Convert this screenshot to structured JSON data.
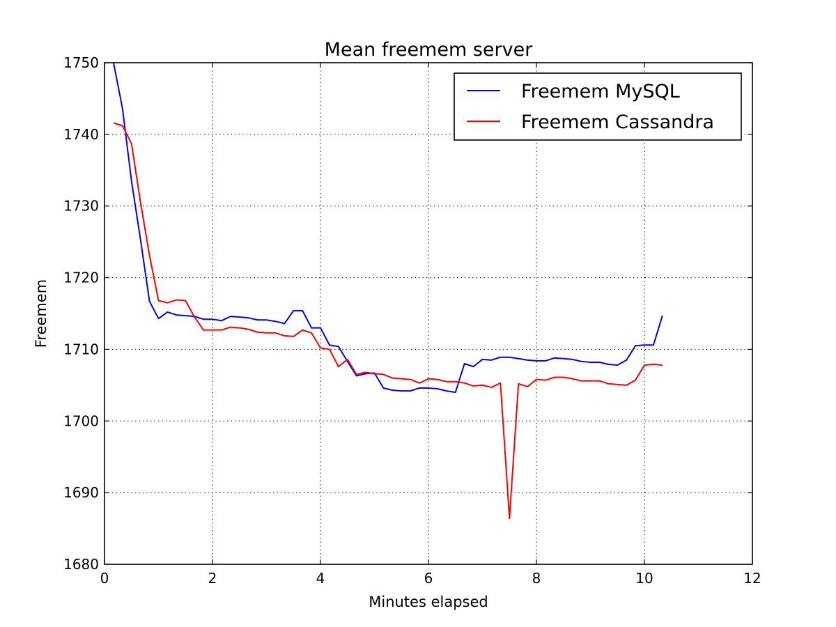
{
  "chart_data": {
    "type": "line",
    "title": "Mean freemem server",
    "xlabel": "Minutes elapsed",
    "ylabel": "Freemem",
    "xlim": [
      0,
      12
    ],
    "ylim": [
      1680,
      1750
    ],
    "xticks": [
      "0",
      "2",
      "4",
      "6",
      "8",
      "10",
      "12"
    ],
    "yticks": [
      "1680",
      "1690",
      "1700",
      "1710",
      "1720",
      "1730",
      "1740",
      "1750"
    ],
    "grid": true,
    "legend_position": "top-right",
    "series": [
      {
        "name": "Freemem MySQL",
        "color": "#0000ff",
        "x": [
          0.167,
          0.333,
          0.5,
          0.667,
          0.833,
          1.0,
          1.167,
          1.333,
          1.5,
          1.667,
          1.833,
          2.0,
          2.167,
          2.333,
          2.5,
          2.667,
          2.833,
          3.0,
          3.167,
          3.333,
          3.5,
          3.667,
          3.833,
          4.0,
          4.167,
          4.333,
          4.5,
          4.667,
          4.833,
          5.0,
          5.167,
          5.333,
          5.5,
          5.667,
          5.833,
          6.0,
          6.167,
          6.333,
          6.5,
          6.667,
          6.833,
          7.0,
          7.167,
          7.333,
          7.5,
          7.667,
          7.833,
          8.0,
          8.167,
          8.333,
          8.5,
          8.667,
          8.833,
          9.0,
          9.167,
          9.333,
          9.5,
          9.667,
          9.833,
          10.0,
          10.167,
          10.333
        ],
        "y": [
          1750.0,
          1743.6,
          1733.5,
          1725.3,
          1716.7,
          1714.3,
          1715.2,
          1714.8,
          1714.7,
          1714.6,
          1714.2,
          1714.2,
          1714.0,
          1714.6,
          1714.5,
          1714.4,
          1714.1,
          1714.1,
          1713.9,
          1713.6,
          1715.4,
          1715.4,
          1713.0,
          1713.0,
          1710.6,
          1710.4,
          1708.3,
          1706.3,
          1706.6,
          1706.7,
          1704.6,
          1704.3,
          1704.2,
          1704.2,
          1704.6,
          1704.6,
          1704.5,
          1704.2,
          1704.0,
          1708.0,
          1707.6,
          1708.6,
          1708.5,
          1708.9,
          1708.9,
          1708.7,
          1708.5,
          1708.4,
          1708.4,
          1708.8,
          1708.7,
          1708.6,
          1708.3,
          1708.2,
          1708.2,
          1707.9,
          1707.8,
          1708.5,
          1710.5,
          1710.6,
          1710.6,
          1714.7
        ]
      },
      {
        "name": "Freemem Cassandra",
        "color": "#ff0000",
        "x": [
          0.167,
          0.333,
          0.5,
          0.667,
          0.833,
          1.0,
          1.167,
          1.333,
          1.5,
          1.667,
          1.833,
          2.0,
          2.167,
          2.333,
          2.5,
          2.667,
          2.833,
          3.0,
          3.167,
          3.333,
          3.5,
          3.667,
          3.833,
          4.0,
          4.167,
          4.333,
          4.5,
          4.667,
          4.833,
          5.0,
          5.167,
          5.333,
          5.5,
          5.667,
          5.833,
          6.0,
          6.167,
          6.333,
          6.5,
          6.667,
          6.833,
          7.0,
          7.167,
          7.333,
          7.5,
          7.667,
          7.833,
          8.0,
          8.167,
          8.333,
          8.5,
          8.667,
          8.833,
          9.0,
          9.167,
          9.333,
          9.5,
          9.667,
          9.833,
          10.0,
          10.167,
          10.333
        ],
        "y": [
          1741.6,
          1741.2,
          1738.7,
          1730.5,
          1723.1,
          1716.8,
          1716.5,
          1716.9,
          1716.8,
          1714.5,
          1712.7,
          1712.7,
          1712.7,
          1713.1,
          1713.0,
          1712.8,
          1712.4,
          1712.3,
          1712.3,
          1711.9,
          1711.8,
          1712.7,
          1712.3,
          1710.2,
          1710.0,
          1707.6,
          1708.6,
          1706.5,
          1706.8,
          1706.6,
          1706.5,
          1706.0,
          1705.9,
          1705.8,
          1705.3,
          1705.9,
          1705.8,
          1705.5,
          1705.5,
          1705.3,
          1704.9,
          1705.0,
          1704.7,
          1705.3,
          1686.4,
          1705.2,
          1704.8,
          1705.8,
          1705.7,
          1706.1,
          1706.1,
          1705.9,
          1705.6,
          1705.6,
          1705.6,
          1705.2,
          1705.1,
          1705.0,
          1705.7,
          1707.8,
          1707.9,
          1707.8
        ]
      }
    ]
  }
}
